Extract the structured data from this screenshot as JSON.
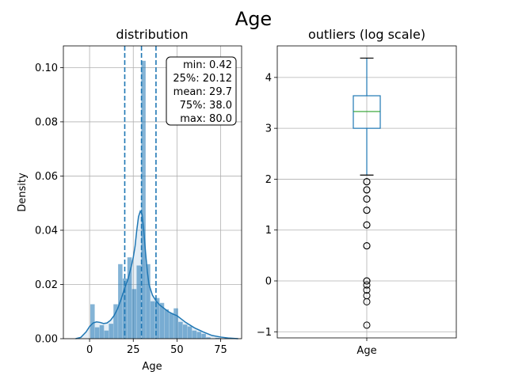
{
  "figure": {
    "title": "Age"
  },
  "colors": {
    "hist": "#1f77b4",
    "box": "#1f77b4",
    "median": "#2ca02c",
    "flier": "#000000"
  },
  "chart_data": [
    {
      "type": "bar",
      "subtype": "histogram_with_kde",
      "title": "distribution",
      "xlabel": "Age",
      "ylabel": "Density",
      "xlim": [
        -15,
        87
      ],
      "ylim": [
        0,
        0.108
      ],
      "xticks": [
        0,
        25,
        50,
        75
      ],
      "yticks": [
        0.0,
        0.02,
        0.04,
        0.06,
        0.08,
        0.1
      ],
      "ytick_labels": [
        "0.00",
        "0.02",
        "0.04",
        "0.06",
        "0.08",
        "0.10"
      ],
      "grid": true,
      "bins": [
        {
          "x0": 0.42,
          "x1": 3.07,
          "value": 0.0127
        },
        {
          "x0": 3.07,
          "x1": 5.72,
          "value": 0.0042
        },
        {
          "x0": 5.72,
          "x1": 8.37,
          "value": 0.005
        },
        {
          "x0": 8.37,
          "x1": 11.02,
          "value": 0.003
        },
        {
          "x0": 11.02,
          "x1": 13.67,
          "value": 0.0055
        },
        {
          "x0": 13.67,
          "x1": 16.32,
          "value": 0.0127
        },
        {
          "x0": 16.32,
          "x1": 18.97,
          "value": 0.0275
        },
        {
          "x0": 18.97,
          "x1": 21.62,
          "value": 0.0222
        },
        {
          "x0": 21.62,
          "x1": 24.27,
          "value": 0.03
        },
        {
          "x0": 24.27,
          "x1": 26.92,
          "value": 0.0183
        },
        {
          "x0": 26.92,
          "x1": 29.57,
          "value": 0.027
        },
        {
          "x0": 29.57,
          "x1": 32.22,
          "value": 0.1025
        },
        {
          "x0": 32.22,
          "x1": 34.87,
          "value": 0.0275
        },
        {
          "x0": 34.87,
          "x1": 37.52,
          "value": 0.0138
        },
        {
          "x0": 37.52,
          "x1": 40.17,
          "value": 0.015
        },
        {
          "x0": 40.17,
          "x1": 42.82,
          "value": 0.0132
        },
        {
          "x0": 42.82,
          "x1": 45.47,
          "value": 0.0108
        },
        {
          "x0": 45.47,
          "x1": 48.12,
          "value": 0.0095
        },
        {
          "x0": 48.12,
          "x1": 50.77,
          "value": 0.0112
        },
        {
          "x0": 50.77,
          "x1": 53.42,
          "value": 0.0062
        },
        {
          "x0": 53.42,
          "x1": 56.07,
          "value": 0.0052
        },
        {
          "x0": 56.07,
          "x1": 58.72,
          "value": 0.0045
        },
        {
          "x0": 58.72,
          "x1": 61.37,
          "value": 0.003
        },
        {
          "x0": 61.37,
          "x1": 64.02,
          "value": 0.0025
        },
        {
          "x0": 64.02,
          "x1": 66.67,
          "value": 0.0018
        },
        {
          "x0": 66.67,
          "x1": 69.32,
          "value": 0.0005
        },
        {
          "x0": 69.32,
          "x1": 71.97,
          "value": 0.0
        },
        {
          "x0": 71.97,
          "x1": 74.62,
          "value": 0.0003
        },
        {
          "x0": 77.27,
          "x1": 80.0,
          "value": 0.0004
        }
      ],
      "kde": {
        "x": [
          -8,
          -5,
          -2,
          0,
          2,
          4,
          6,
          8,
          10,
          12,
          14,
          16,
          18,
          20,
          22,
          24,
          25,
          26,
          27,
          28,
          29,
          30,
          31,
          32,
          33,
          34,
          36,
          38,
          40,
          42,
          45,
          48,
          50,
          55,
          60,
          65,
          70,
          75,
          80,
          85
        ],
        "y": [
          0.0,
          0.0005,
          0.0025,
          0.0045,
          0.0058,
          0.0062,
          0.006,
          0.0056,
          0.0058,
          0.0068,
          0.0085,
          0.011,
          0.0145,
          0.0185,
          0.022,
          0.027,
          0.03,
          0.034,
          0.04,
          0.045,
          0.047,
          0.046,
          0.04,
          0.032,
          0.025,
          0.02,
          0.016,
          0.014,
          0.0125,
          0.0115,
          0.01,
          0.009,
          0.0085,
          0.006,
          0.004,
          0.0025,
          0.0012,
          0.0006,
          0.0002,
          0.0
        ]
      },
      "vlines": [
        {
          "name": "25%",
          "x": 20.12
        },
        {
          "name": "mean",
          "x": 29.7
        },
        {
          "name": "75%",
          "x": 38.0
        }
      ],
      "stats_box": [
        {
          "label": "min: 0.42"
        },
        {
          "label": "25%: 20.12"
        },
        {
          "label": "mean: 29.7"
        },
        {
          "label": "75%: 38.0"
        },
        {
          "label": "max: 80.0"
        }
      ]
    },
    {
      "type": "box",
      "title": "outliers (log scale)",
      "categories": [
        "Age"
      ],
      "ylim": [
        -1.12,
        4.62
      ],
      "yticks": [
        -1,
        0,
        1,
        2,
        3,
        4
      ],
      "grid": true,
      "box": {
        "whisker_low": 2.08,
        "q1": 3.0,
        "median": 3.33,
        "q3": 3.64,
        "whisker_high": 4.38
      },
      "fliers": [
        1.95,
        1.95,
        1.79,
        1.79,
        1.61,
        1.61,
        1.39,
        1.39,
        1.1,
        1.1,
        0.69,
        0.69,
        0.0,
        0.0,
        -0.08,
        -0.18,
        -0.29,
        -0.41,
        -0.87
      ]
    }
  ]
}
